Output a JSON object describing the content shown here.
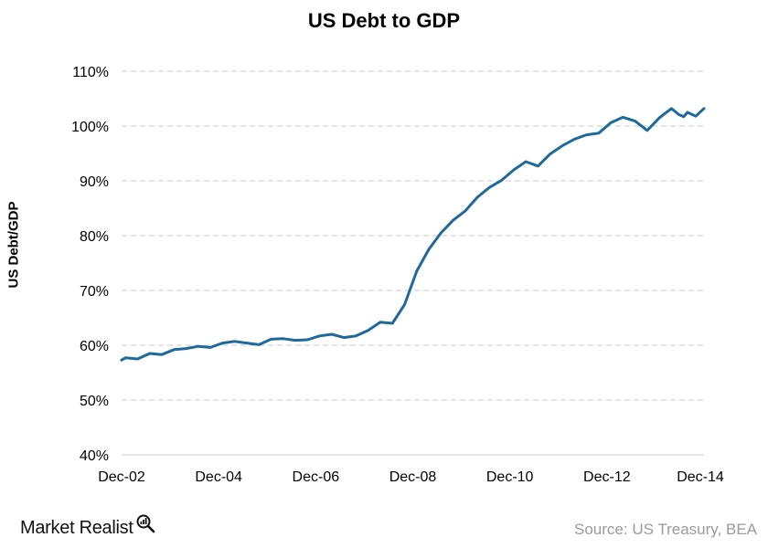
{
  "chart_data": {
    "type": "line",
    "title": "US Debt to GDP",
    "ylabel": "US Debt/GDP",
    "xlabel": "",
    "ylim": [
      40,
      110
    ],
    "y_ticks": [
      "40%",
      "50%",
      "60%",
      "70%",
      "80%",
      "90%",
      "100%",
      "110%"
    ],
    "x_tick_labels": [
      "Dec-02",
      "Dec-04",
      "Dec-06",
      "Dec-08",
      "Dec-10",
      "Dec-12",
      "Dec-14"
    ],
    "grid": true,
    "color": "#1f6a9a",
    "series": [
      {
        "x": [
          2002.92,
          2003.0,
          2003.25,
          2003.5,
          2003.75,
          2004.0,
          2004.25,
          2004.5,
          2004.75,
          2005.0,
          2005.25,
          2005.5,
          2005.75,
          2006.0,
          2006.25,
          2006.5,
          2006.75,
          2007.0,
          2007.25,
          2007.5,
          2007.75,
          2008.0,
          2008.25,
          2008.5,
          2008.75,
          2009.0,
          2009.25,
          2009.5,
          2009.75,
          2010.0,
          2010.25,
          2010.5,
          2010.75,
          2011.0,
          2011.25,
          2011.5,
          2011.75,
          2012.0,
          2012.25,
          2012.5,
          2012.75,
          2013.0,
          2013.25,
          2013.5,
          2013.75,
          2014.0,
          2014.25,
          2014.4,
          2014.5,
          2014.58,
          2014.75,
          2014.92
        ],
        "values": [
          57.3,
          57.7,
          57.5,
          58.5,
          58.3,
          59.2,
          59.4,
          59.8,
          59.6,
          60.4,
          60.7,
          60.4,
          60.1,
          61.1,
          61.2,
          60.9,
          61.0,
          61.7,
          62.0,
          61.4,
          61.7,
          62.7,
          64.2,
          64.0,
          67.4,
          73.5,
          77.5,
          80.5,
          82.8,
          84.5,
          87.0,
          88.8,
          90.1,
          92.0,
          93.5,
          92.7,
          94.9,
          96.4,
          97.6,
          98.4,
          98.7,
          100.6,
          101.6,
          100.9,
          99.2,
          101.5,
          103.2,
          102.1,
          101.7,
          102.5,
          101.8,
          103.2
        ]
      }
    ]
  },
  "brand": {
    "name": "Market Realist",
    "logo_icon": "magnifier-chart-icon"
  },
  "footer": {
    "source": "Source: US Treasury, BEA"
  }
}
